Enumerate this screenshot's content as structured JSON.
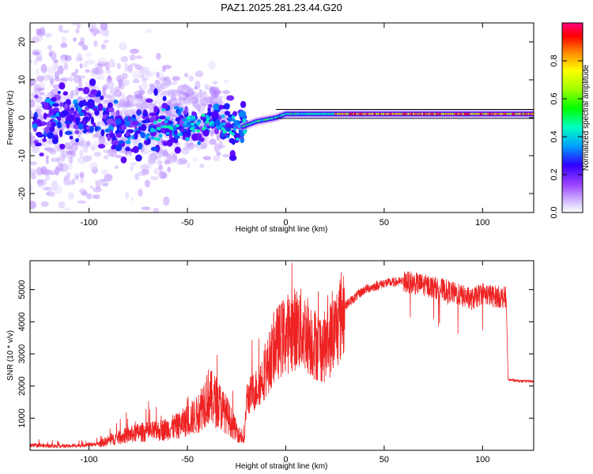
{
  "title": "PAZ1.2025.281.23.44.G20",
  "chart_data": [
    {
      "type": "heatmap",
      "title": "PAZ1.2025.281.23.44.G20",
      "xlabel": "Height of straight line (km)",
      "ylabel": "Frequency (Hz)",
      "xlim": [
        -130,
        126
      ],
      "ylim": [
        -25,
        25
      ],
      "x_ticks": [
        -100,
        -50,
        0,
        50,
        100
      ],
      "y_ticks": [
        -20,
        -10,
        0,
        10,
        20
      ],
      "x_tick_labels": [
        "-100",
        "-50",
        "0",
        "50",
        "100"
      ],
      "y_tick_labels": [
        "-20",
        "-10",
        "0",
        "10",
        "20"
      ],
      "colorbar": {
        "label": "Normalized spectral amplitude",
        "range": [
          0,
          1
        ],
        "ticks": [
          0.0,
          0.2,
          0.4,
          0.6,
          0.8
        ],
        "tick_labels": [
          "0.0",
          "0.2",
          "0.4",
          "0.6",
          "0.8"
        ],
        "colormap": [
          "#e8dcff",
          "#7a00ff",
          "#0000ff",
          "#00d8ff",
          "#00ff00",
          "#ffff00",
          "#ff9900",
          "#ff0000",
          "#ff0080"
        ]
      },
      "ridge": {
        "description_points_x": [
          -125,
          -100,
          -75,
          -50,
          -35,
          -25,
          -15,
          -5,
          0,
          10,
          25,
          50,
          75,
          100,
          126
        ],
        "description_points_y": [
          0,
          0,
          -3,
          -2,
          -1,
          -3,
          -1,
          0,
          1,
          1,
          1,
          1,
          1,
          1,
          1
        ]
      }
    },
    {
      "type": "line",
      "xlabel": "Height of straight line (km)",
      "ylabel": "SNR (10 * v/v)",
      "xlim": [
        -130,
        126
      ],
      "ylim": [
        0,
        5900
      ],
      "x_ticks": [
        -100,
        -50,
        0,
        50,
        100
      ],
      "y_ticks": [
        1000,
        2000,
        3000,
        4000,
        5000
      ],
      "x_tick_labels": [
        "-100",
        "-50",
        "0",
        "50",
        "100"
      ],
      "y_tick_labels": [
        "1000",
        "2000",
        "3000",
        "4000",
        "5000"
      ],
      "color": "#ee2222",
      "envelope_x": [
        -130,
        -110,
        -95,
        -85,
        -75,
        -65,
        -55,
        -45,
        -40,
        -35,
        -30,
        -25,
        -21,
        -20,
        -15,
        -10,
        -5,
        0,
        5,
        10,
        15,
        20,
        25,
        30,
        40,
        50,
        60,
        70,
        80,
        90,
        95,
        100,
        105,
        112,
        113,
        120,
        126
      ],
      "envelope_y": [
        150,
        130,
        200,
        400,
        550,
        600,
        750,
        1100,
        1700,
        1500,
        1100,
        600,
        300,
        1600,
        1900,
        2500,
        3300,
        3600,
        3800,
        3700,
        3300,
        3200,
        3700,
        4500,
        5000,
        5200,
        5250,
        5150,
        5000,
        4800,
        4700,
        4900,
        4800,
        4750,
        2200,
        2150,
        2150
      ]
    }
  ]
}
